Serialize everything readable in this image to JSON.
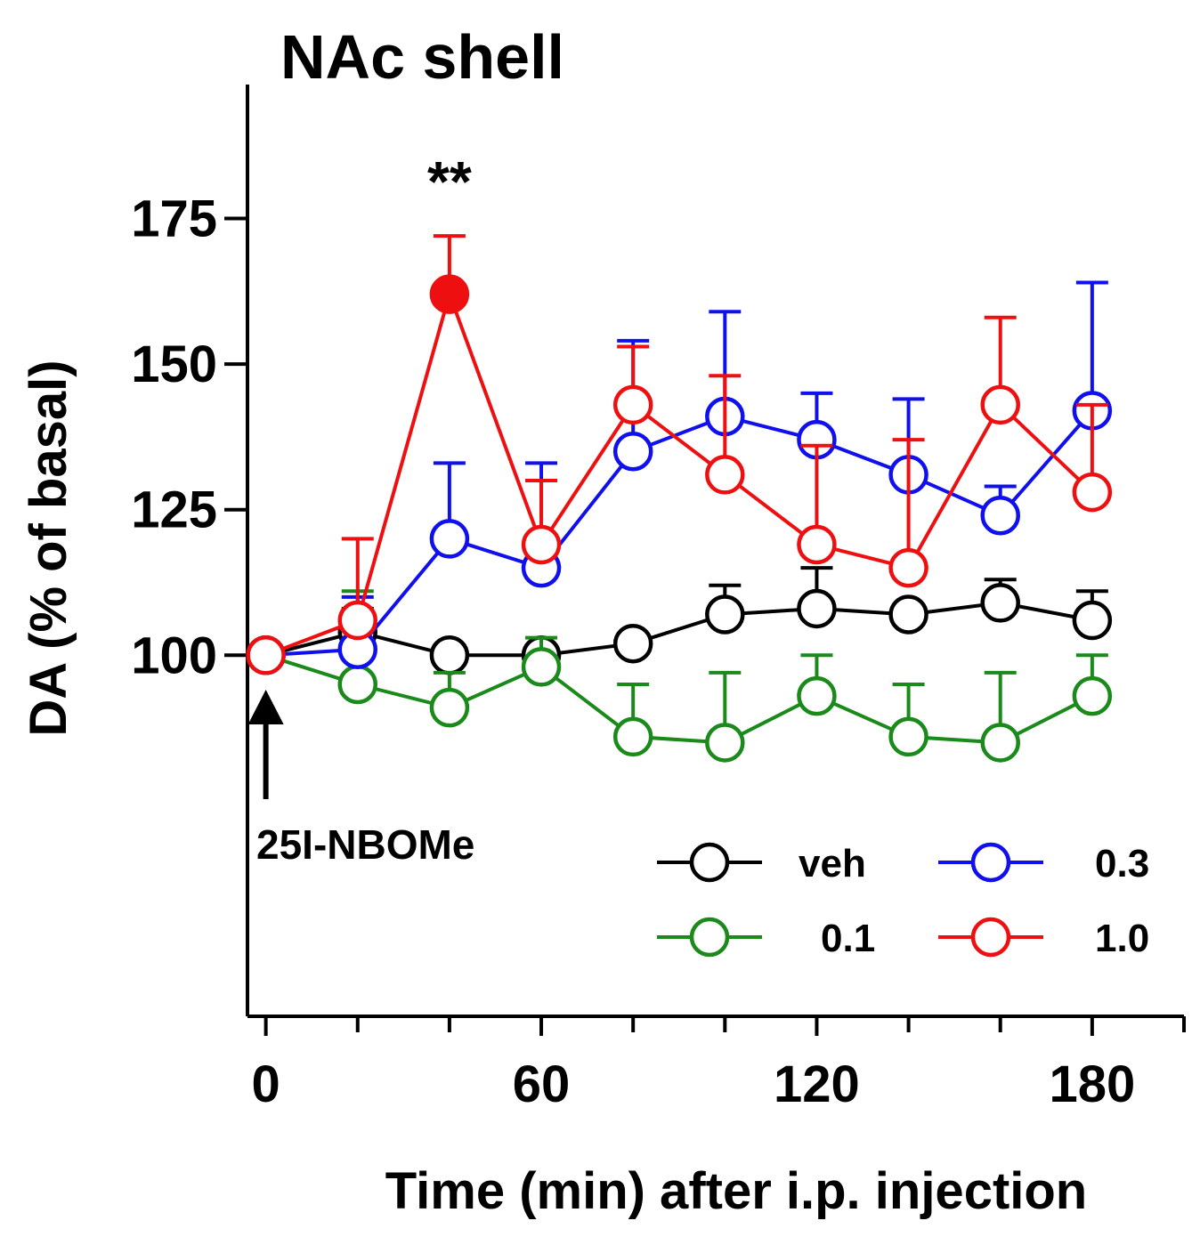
{
  "chart_data": {
    "type": "line",
    "title": "NAc shell",
    "xlabel": "Time (min) after i.p. injection",
    "ylabel": "DA (% of basal)",
    "xlim": [
      -4,
      200
    ],
    "ylim": [
      38,
      198
    ],
    "xticks": [
      0,
      60,
      120,
      180
    ],
    "xtick_labels": [
      "0",
      "60",
      "120",
      "180"
    ],
    "x_minor_ticks": [
      20,
      40,
      80,
      100,
      140,
      160,
      200
    ],
    "yticks": [
      100,
      125,
      150,
      175
    ],
    "ytick_labels": [
      "100",
      "125",
      "150",
      "175"
    ],
    "grid": false,
    "legend_position": "bottom-right",
    "x": [
      0,
      20,
      40,
      60,
      80,
      100,
      120,
      140,
      160,
      180
    ],
    "series": [
      {
        "name": "veh",
        "color": "#000000",
        "values": [
          100,
          104,
          100,
          100,
          102,
          107,
          108,
          107,
          109,
          106
        ],
        "errors": [
          0,
          4,
          0,
          3,
          0,
          5,
          7,
          0,
          4,
          5
        ],
        "error_dir": "up"
      },
      {
        "name": "0.1",
        "color": "#1a8a1a",
        "values": [
          100,
          95,
          91,
          98,
          86,
          85,
          93,
          86,
          85,
          93
        ],
        "errors": [
          0,
          16,
          6,
          5,
          9,
          12,
          7,
          9,
          12,
          7
        ],
        "error_dir": "up"
      },
      {
        "name": "0.3",
        "color": "#1010ee",
        "values": [
          100,
          101,
          120,
          115,
          135,
          141,
          137,
          131,
          124,
          142
        ],
        "errors": [
          0,
          9,
          13,
          18,
          19,
          18,
          8,
          13,
          5,
          22
        ],
        "error_dir": "up"
      },
      {
        "name": "1.0",
        "color": "#ee1010",
        "values": [
          100,
          106,
          162,
          119,
          143,
          131,
          119,
          115,
          143,
          128
        ],
        "errors": [
          0,
          14,
          10,
          11,
          10,
          17,
          17,
          22,
          15,
          15
        ],
        "error_dir": "up"
      }
    ],
    "significance": {
      "label": "**",
      "x": 40,
      "y": 181
    },
    "significant_point": {
      "series": "1.0",
      "x": 40
    },
    "annotation": {
      "label": "25I-NBOMe",
      "x": 0
    },
    "legend_order": [
      "veh",
      "0.3",
      "0.1",
      "1.0"
    ]
  }
}
